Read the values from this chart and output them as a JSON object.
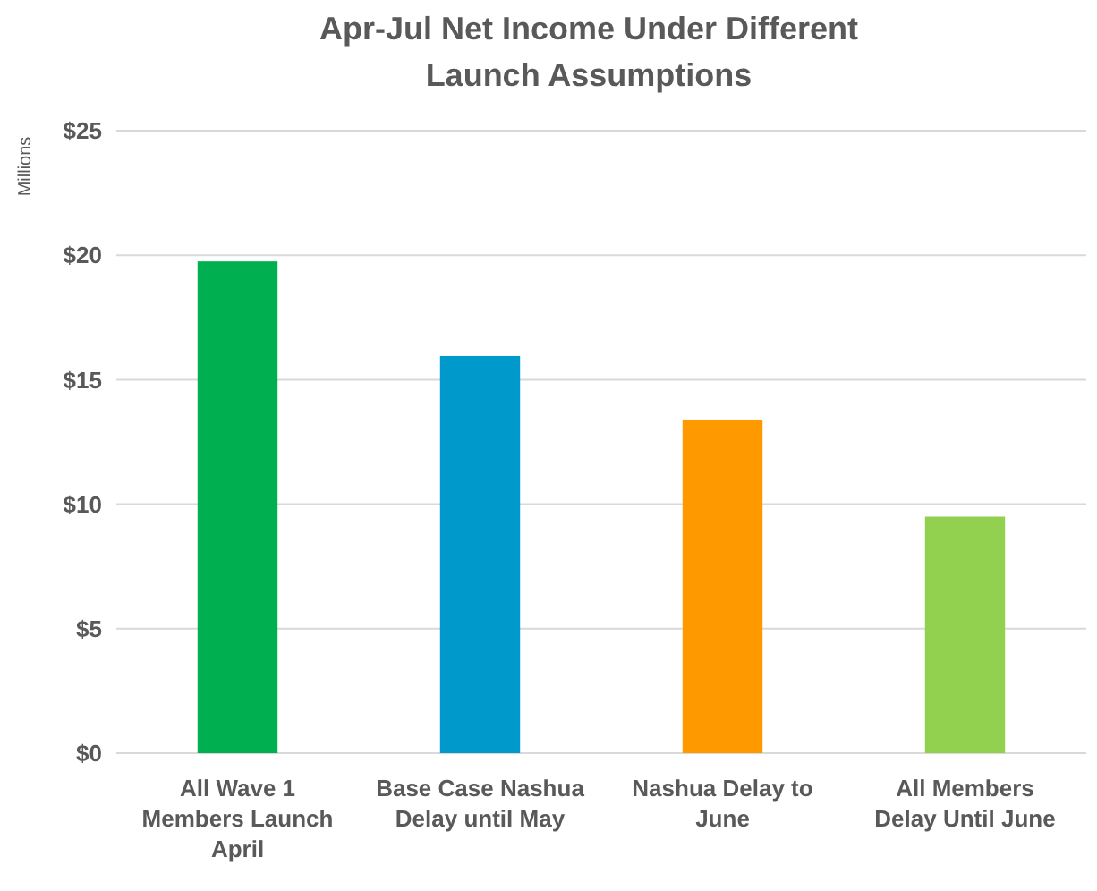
{
  "chart_data": {
    "type": "bar",
    "title": "Apr-Jul Net Income Under Different Launch Assumptions",
    "ylabel": "Millions",
    "categories": [
      "All Wave 1 Members Launch April",
      "Base Case Nashua Delay until May",
      "Nashua Delay to June",
      "All Members Delay Until June"
    ],
    "values": [
      19.75,
      15.95,
      13.4,
      9.5
    ],
    "colors": [
      "#00b050",
      "#0099cc",
      "#ff9900",
      "#92d050"
    ],
    "ylim": [
      0,
      25
    ],
    "yticks": [
      {
        "value": 0,
        "label": "$0"
      },
      {
        "value": 5,
        "label": "$5"
      },
      {
        "value": 10,
        "label": "$10"
      },
      {
        "value": 15,
        "label": "$15"
      },
      {
        "value": 20,
        "label": "$20"
      },
      {
        "value": 25,
        "label": "$25"
      }
    ],
    "grid": "y"
  }
}
